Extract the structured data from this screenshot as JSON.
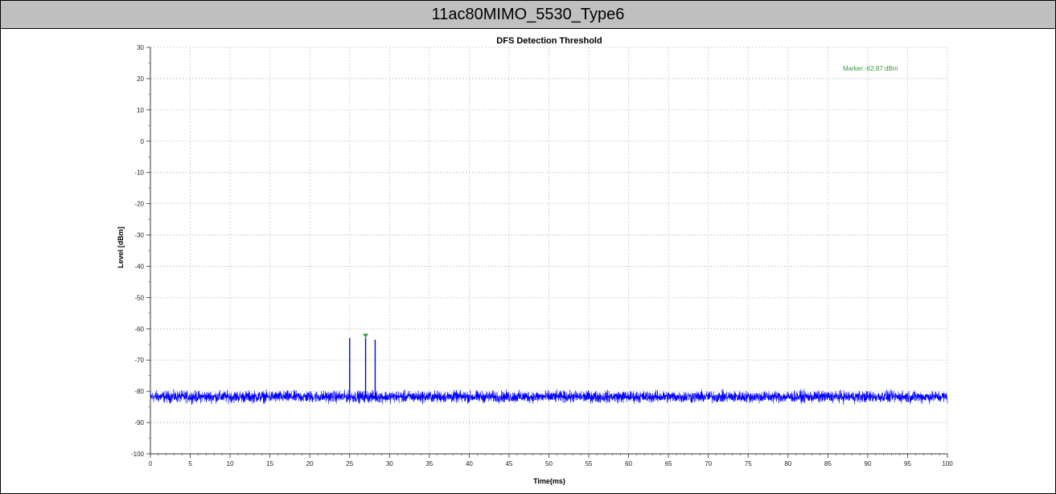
{
  "page_title": "11ac80MIMO_5530_Type6",
  "chart_data": {
    "type": "line",
    "title": "DFS Detection Threshold",
    "xlabel": "Time(ms)",
    "ylabel": "Level [dBm]",
    "xlim": [
      0,
      100
    ],
    "ylim": [
      -100,
      30
    ],
    "xticks": [
      "0",
      "5",
      "10",
      "15",
      "20",
      "25",
      "30",
      "35",
      "40",
      "45",
      "50",
      "55",
      "60",
      "65",
      "70",
      "75",
      "80",
      "85",
      "90",
      "95",
      "100"
    ],
    "yticks": [
      "30",
      "20",
      "10",
      "0",
      "-10",
      "-20",
      "-30",
      "-40",
      "-50",
      "-60",
      "-70",
      "-80",
      "-90",
      "-100"
    ],
    "grid": true,
    "series": [
      {
        "noise_floor_dBm": -82,
        "noise_range_dBm": [
          -84.5,
          -79
        ],
        "pulses": [
          {
            "x": 25.0,
            "y": -63
          },
          {
            "x": 27.0,
            "y": -62.87
          },
          {
            "x": 28.2,
            "y": -63.5
          }
        ]
      }
    ],
    "marker": {
      "x": 27.0,
      "y": -62.87,
      "label": "Marker:-62.87 dBm"
    },
    "colors": {
      "trace": "#0000ff",
      "marker": "#339933",
      "grid": "#c8c8c8"
    }
  }
}
